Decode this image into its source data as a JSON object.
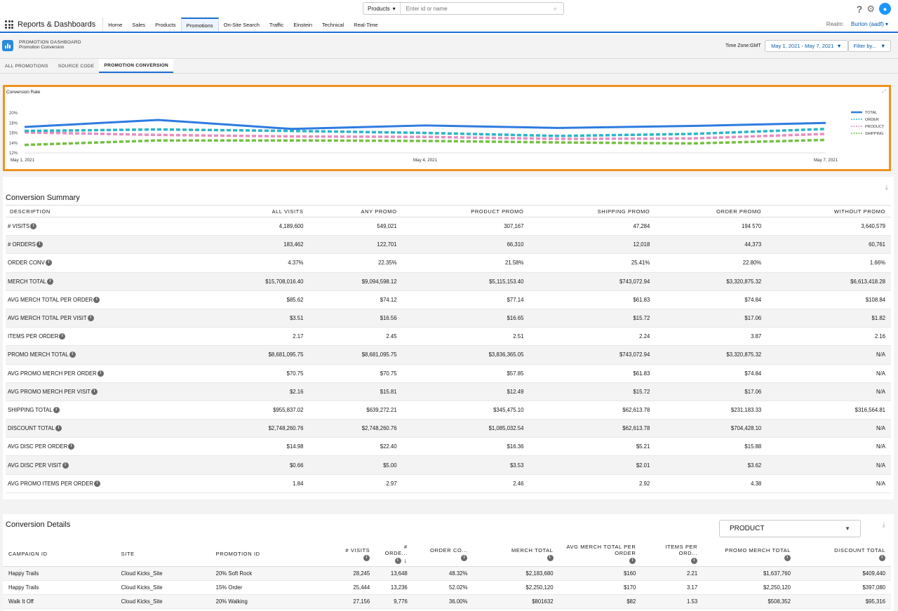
{
  "search": {
    "scope": "Products",
    "placeholder": "Enter id or name"
  },
  "app": {
    "name": "Reports & Dashboards"
  },
  "nav": {
    "items": [
      "Home",
      "Sales",
      "Products",
      "Promotions",
      "On-Site Search",
      "Traffic",
      "Einstein",
      "Technical",
      "Real-Time"
    ],
    "active": "Promotions"
  },
  "realm": {
    "label": "Realm:",
    "value": "Burton (aadf)"
  },
  "dashboard": {
    "kicker": "PROMOTION DASHBOARD",
    "title": "Promotion Conversion",
    "timezone": "Time Zone:GMT",
    "date_range": "May 1, 2021 - May 7, 2021",
    "filter_label": "Filter by..."
  },
  "tabs": [
    "ALL PROMOTIONS",
    "SOURCE CODE",
    "PROMOTION CONVERSION"
  ],
  "chart_data": {
    "type": "line",
    "title": "Conversion Rate",
    "x": [
      "May 1, 2021",
      "May 2, 2021",
      "May 3, 2021",
      "May 4, 2021",
      "May 5, 2021",
      "May 6, 2021",
      "May 7, 2021"
    ],
    "x_tick_labels": [
      "May 1, 2021",
      "May 4, 2021",
      "May 7, 2021"
    ],
    "y_ticks": [
      "20%",
      "18%",
      "16%",
      "14%",
      "12%"
    ],
    "ylim": [
      12,
      20
    ],
    "legend_position": "right",
    "series": [
      {
        "name": "TOTAL",
        "color": "#2e7be0",
        "style": "solid",
        "values": [
          17.2,
          18.6,
          16.8,
          17.5,
          17.0,
          17.4,
          18.0
        ]
      },
      {
        "name": "ORDER",
        "color": "#2bb5c8",
        "style": "dashed",
        "values": [
          16.4,
          16.7,
          16.4,
          16.0,
          15.4,
          15.8,
          16.8
        ]
      },
      {
        "name": "PRODUCT",
        "color": "#e58ec0",
        "style": "dashed",
        "values": [
          16.1,
          15.6,
          15.3,
          15.2,
          14.8,
          14.9,
          15.8
        ]
      },
      {
        "name": "SHIPPING",
        "color": "#74c043",
        "style": "dashed",
        "values": [
          13.6,
          14.5,
          14.5,
          14.4,
          14.1,
          13.9,
          14.6
        ]
      }
    ]
  },
  "summary": {
    "title": "Conversion Summary",
    "columns": [
      "DESCRIPTION",
      "ALL VISITS",
      "ANY PROMO",
      "PRODUCT PROMO",
      "SHIPPING PROMO",
      "ORDER PROMO",
      "WITHOUT PROMO"
    ],
    "rows": [
      [
        "# VISITS",
        "4,189,600",
        "549,021",
        "307,167",
        "47,284",
        "194 570",
        "3,640,579"
      ],
      [
        "# ORDERS",
        "183,462",
        "122,701",
        "66,310",
        "12,018",
        "44,373",
        "60,761"
      ],
      [
        "ORDER CONV",
        "4.37%",
        "22.35%",
        "21.58%",
        "25.41%",
        "22.80%",
        "1.66%"
      ],
      [
        "MERCH TOTAL",
        "$15,708,016.40",
        "$9,094,598.12",
        "$5,115,153.40",
        "$743,072.94",
        "$3,320,875.32",
        "$6,613,418.28"
      ],
      [
        "AVG MERCH TOTAL PER ORDER",
        "$85.62",
        "$74.12",
        "$77.14",
        "$61.83",
        "$74.84",
        "$108.84"
      ],
      [
        "AVG MERCH TOTAL PER VISIT",
        "$3.51",
        "$16.56",
        "$16.65",
        "$15.72",
        "$17.06",
        "$1.82"
      ],
      [
        "ITEMS PER ORDER",
        "2.17",
        "2.45",
        "2.51",
        "2.24",
        "3.87",
        "2.16"
      ],
      [
        "PROMO MERCH TOTAL",
        "$8,681,095.75",
        "$8,681,095.75",
        "$3,836,365.05",
        "$743,072.94",
        "$3,320,875.32",
        "N/A"
      ],
      [
        "AVG PROMO MERCH PER ORDER",
        "$70.75",
        "$70.75",
        "$57.85",
        "$61.83",
        "$74.84",
        "N/A"
      ],
      [
        "AVG PROMO MERCH PER VISIT",
        "$2.16",
        "$15.81",
        "$12.49",
        "$15.72",
        "$17.06",
        "N/A"
      ],
      [
        "SHIPPING TOTAL",
        "$955,837.02",
        "$639,272.21",
        "$345,475.10",
        "$62,613.78",
        "$231,183.33",
        "$316,564.81"
      ],
      [
        "DISCOUNT TOTAL",
        "$2,748,260.76",
        "$2,748,260.76",
        "$1,085,032.54",
        "$62,613.78",
        "$704,428.10",
        "N/A"
      ],
      [
        "AVG DISC PER ORDER",
        "$14.98",
        "$22.40",
        "$16.36",
        "$5.21",
        "$15.88",
        "N/A"
      ],
      [
        "AVG DISC PER VISIT",
        "$0.66",
        "$5.00",
        "$3.53",
        "$2.01",
        "$3.62",
        "N/A"
      ],
      [
        "AVG PROMO ITEMS PER ORDER",
        "1.84",
        "2.97",
        "2.46",
        "2.92",
        "4.38",
        "N/A"
      ]
    ]
  },
  "details": {
    "title": "Conversion Details",
    "selector_value": "PRODUCT",
    "columns": [
      "CAMPAIGN ID",
      "SITE",
      "PROMOTION ID",
      "# VISITS",
      "# ORDE...",
      "ORDER CO...",
      "MERCH TOTAL",
      "AVG MERCH TOTAL PER ORDER",
      "ITEMS PER ORD...",
      "PROMO MERCH TOTAL",
      "DISCOUNT TOTAL"
    ],
    "rows": [
      [
        "Happy Trails",
        "Cloud Kicks_Site",
        "20% Soft Rock",
        "28,245",
        "13,648",
        "48.32%",
        "$2,183,680",
        "$160",
        "2.21",
        "$1,637,760",
        "$409,440"
      ],
      [
        "Happy Trails",
        "Cloud Kicks_Site",
        "15% Order",
        "25,444",
        "13,236",
        "52.02%",
        "$2,250,120",
        "$170",
        "3.17",
        "$2,250,120",
        "$397,080"
      ],
      [
        "Walk It Off",
        "Cloud Kicks_Site",
        "20% Walking",
        "27,156",
        "9,776",
        "36.00%",
        "$801632",
        "$82",
        "1.53",
        "$508,352",
        "$95,316"
      ]
    ]
  }
}
